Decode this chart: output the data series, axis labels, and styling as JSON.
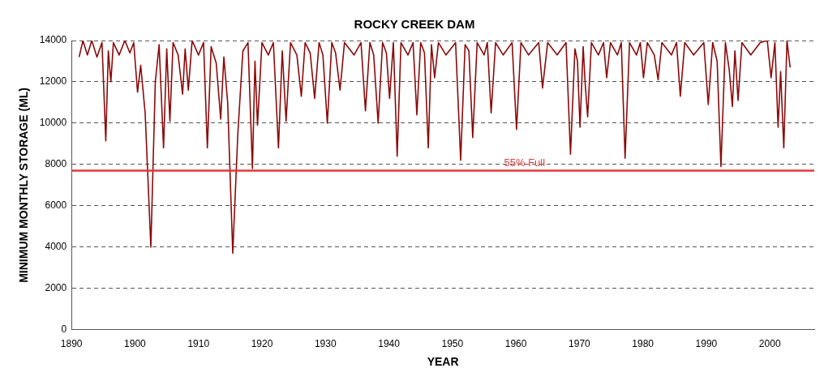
{
  "chart_data": {
    "type": "line",
    "title": "ROCKY CREEK DAM",
    "xlabel": "YEAR",
    "ylabel": "MINIMUM MONTHLY STORAGE (ML)",
    "xlim": [
      1890,
      2007
    ],
    "xticks": [
      1890,
      1900,
      1910,
      1920,
      1930,
      1940,
      1950,
      1960,
      1970,
      1980,
      1990,
      2000
    ],
    "ylim": [
      0,
      14000
    ],
    "yticks": [
      0,
      2000,
      4000,
      6000,
      8000,
      10000,
      12000,
      14000
    ],
    "grid": "y",
    "legend": false,
    "marker": "none",
    "line_style": "solid",
    "series": [
      {
        "color": "#8b0a0a",
        "x": [
          1891.2,
          1891.8,
          1892.5,
          1893.2,
          1894.0,
          1894.8,
          1895.4,
          1895.8,
          1896.2,
          1896.6,
          1897.5,
          1898.4,
          1899.2,
          1899.8,
          1900.4,
          1900.9,
          1901.6,
          1902.5,
          1903.2,
          1903.8,
          1904.5,
          1905.0,
          1905.5,
          1906.0,
          1906.8,
          1907.5,
          1907.9,
          1908.4,
          1909.0,
          1910.0,
          1910.8,
          1911.4,
          1912.0,
          1912.8,
          1913.5,
          1914.0,
          1914.6,
          1915.4,
          1916.2,
          1917.0,
          1917.8,
          1918.5,
          1918.9,
          1919.3,
          1920.0,
          1921.0,
          1921.8,
          1922.6,
          1923.2,
          1923.8,
          1924.5,
          1925.5,
          1926.2,
          1926.8,
          1927.6,
          1928.3,
          1929.0,
          1929.6,
          1930.3,
          1931.0,
          1931.6,
          1932.3,
          1933.0,
          1934.5,
          1935.6,
          1936.3,
          1937.0,
          1937.6,
          1938.3,
          1939.0,
          1939.6,
          1940.1,
          1940.7,
          1941.3,
          1941.9,
          1943.0,
          1943.8,
          1944.4,
          1945.0,
          1945.6,
          1946.2,
          1946.7,
          1947.2,
          1947.8,
          1949.0,
          1950.5,
          1951.3,
          1952.0,
          1952.6,
          1953.2,
          1953.9,
          1955.0,
          1955.5,
          1956.1,
          1956.8,
          1958.0,
          1959.4,
          1960.1,
          1960.8,
          1962.0,
          1963.6,
          1964.2,
          1965.0,
          1966.5,
          1967.9,
          1968.6,
          1969.3,
          1969.7,
          1970.1,
          1970.6,
          1970.9,
          1971.3,
          1971.9,
          1973.0,
          1973.8,
          1974.3,
          1974.9,
          1976.0,
          1976.6,
          1977.2,
          1977.9,
          1979.0,
          1979.6,
          1980.1,
          1980.7,
          1981.8,
          1982.4,
          1983.0,
          1984.5,
          1985.3,
          1985.9,
          1986.6,
          1988.0,
          1989.6,
          1990.3,
          1991.0,
          1991.7,
          1992.3,
          1993.0,
          1993.6,
          1994.1,
          1994.5,
          1995.0,
          1995.6,
          1997.0,
          1998.5,
          1999.6,
          2000.2,
          2000.8,
          2001.3,
          2001.7,
          2002.2,
          2002.7,
          2003.2
        ],
        "values": [
          13200,
          14000,
          13300,
          14000,
          13200,
          13900,
          9150,
          13500,
          12000,
          13900,
          13300,
          14000,
          13400,
          13900,
          11500,
          12800,
          10500,
          4000,
          12000,
          13800,
          8800,
          13600,
          10100,
          13900,
          13300,
          11400,
          13600,
          11600,
          14000,
          13300,
          13900,
          8800,
          13700,
          12900,
          10200,
          13200,
          11000,
          3700,
          9500,
          13500,
          13900,
          7800,
          13000,
          9900,
          13900,
          13300,
          13900,
          8800,
          13500,
          10100,
          13900,
          13300,
          11300,
          13900,
          13400,
          11200,
          13900,
          13300,
          10000,
          13900,
          13400,
          11600,
          13900,
          13300,
          13900,
          10600,
          13900,
          13300,
          10000,
          13900,
          13400,
          11200,
          13900,
          8400,
          13900,
          13300,
          13900,
          10400,
          13900,
          13400,
          8800,
          13800,
          12200,
          13900,
          13300,
          13900,
          8200,
          13800,
          13500,
          9300,
          13900,
          13300,
          13900,
          10500,
          13900,
          13300,
          13900,
          9700,
          13900,
          13300,
          13900,
          11700,
          13900,
          13300,
          13900,
          8500,
          13600,
          13000,
          9800,
          13700,
          12000,
          10300,
          13900,
          13300,
          13900,
          12200,
          13900,
          13300,
          13900,
          8300,
          13900,
          13300,
          13900,
          12200,
          13900,
          13300,
          12100,
          13900,
          13300,
          13900,
          11300,
          13900,
          13300,
          13900,
          10900,
          13900,
          13000,
          7900,
          13900,
          12600,
          10800,
          13500,
          11100,
          13900,
          13300,
          13900,
          14000,
          12200,
          13900,
          9800,
          12500,
          8800,
          14000,
          12700
        ]
      }
    ],
    "ref_lines": [
      {
        "axis": "y",
        "value": 7700,
        "label": "55% Full",
        "color": "#e03a3a"
      }
    ]
  }
}
